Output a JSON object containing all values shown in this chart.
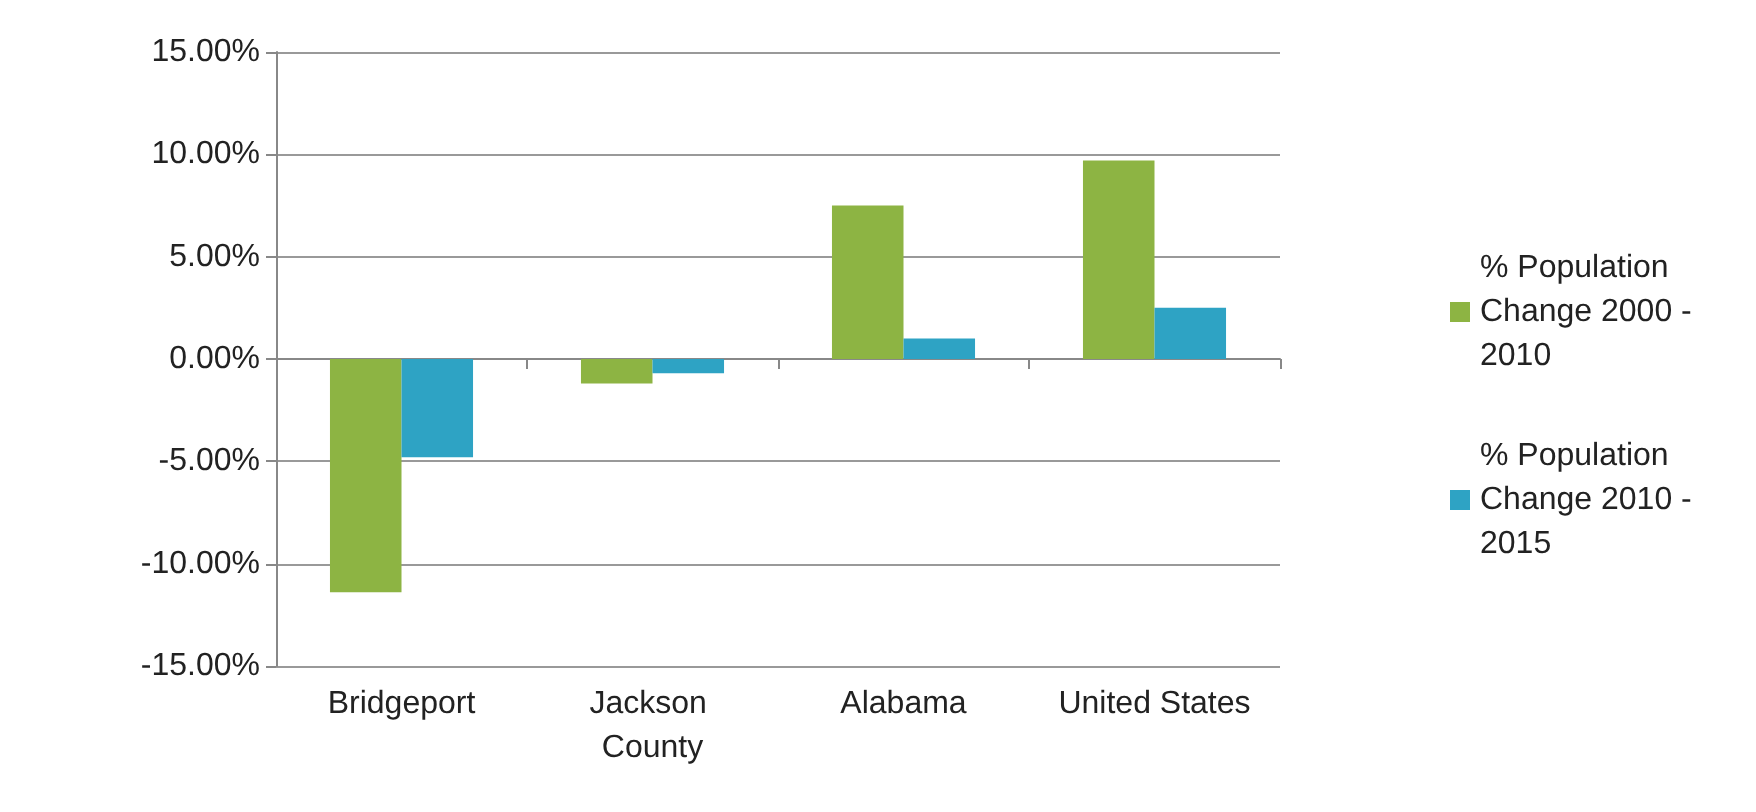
{
  "chart_data": {
    "type": "bar",
    "categories": [
      "Bridgeport",
      "Jackson County",
      "Alabama",
      "United States"
    ],
    "series": [
      {
        "name": "% Population Change 2000 - 2010",
        "color": "#8db443",
        "values": [
          -11.4,
          -1.2,
          7.5,
          9.7
        ]
      },
      {
        "name": "% Population Change 2010 - 2015",
        "color": "#2ea3c4",
        "values": [
          -4.8,
          -0.7,
          1.0,
          2.5
        ]
      }
    ],
    "ylim": [
      -15,
      15
    ],
    "yticks": [
      {
        "value": -15,
        "label": "-15.00%"
      },
      {
        "value": -10,
        "label": "-10.00%"
      },
      {
        "value": -5,
        "label": "-5.00%"
      },
      {
        "value": 0,
        "label": "0.00%"
      },
      {
        "value": 5,
        "label": "5.00%"
      },
      {
        "value": 10,
        "label": "10.00%"
      },
      {
        "value": 15,
        "label": "15.00%"
      }
    ],
    "grid": "y",
    "legend": "right"
  }
}
